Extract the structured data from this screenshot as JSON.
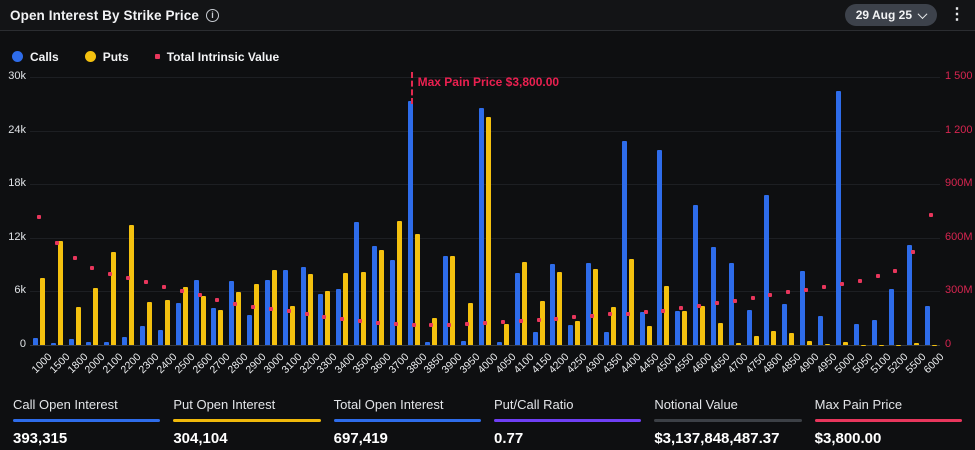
{
  "header": {
    "title": "Open Interest By Strike Price",
    "info_icon": "i",
    "date_selector": "29 Aug 25",
    "menu_icon": "⋮"
  },
  "legend": {
    "calls": "Calls",
    "puts": "Puts",
    "intrinsic": "Total Intrinsic Value"
  },
  "colors": {
    "calls_blue": "#2e6cea",
    "puts_yellow": "#f4c10f",
    "intrinsic_pink": "#e8365c",
    "ratio_purple": "#6f3ff5",
    "notional_gray": "#3c4046"
  },
  "chart_data": {
    "type": "bar",
    "title": "Open Interest By Strike Price",
    "grid": true,
    "legend_position": "top-left",
    "categories": [
      "1000",
      "1500",
      "1800",
      "2000",
      "2100",
      "2200",
      "2300",
      "2400",
      "2500",
      "2600",
      "2700",
      "2800",
      "2900",
      "3000",
      "3100",
      "3200",
      "3300",
      "3400",
      "3500",
      "3600",
      "3700",
      "3800",
      "3850",
      "3900",
      "3950",
      "4000",
      "4050",
      "4100",
      "4150",
      "4200",
      "4250",
      "4300",
      "4350",
      "4400",
      "4450",
      "4500",
      "4550",
      "4600",
      "4650",
      "4700",
      "4750",
      "4800",
      "4850",
      "4900",
      "4950",
      "5000",
      "5050",
      "5100",
      "5200",
      "5500",
      "6000"
    ],
    "series": [
      {
        "name": "Calls",
        "type": "bar",
        "color": "#2e6cea",
        "axis": "left",
        "values": [
          800,
          200,
          700,
          300,
          300,
          900,
          2100,
          1700,
          4700,
          7300,
          4100,
          7200,
          3400,
          7300,
          8400,
          8700,
          5700,
          6300,
          13800,
          11100,
          9500,
          27300,
          300,
          10000,
          500,
          26500,
          300,
          8100,
          1400,
          9100,
          2200,
          9200,
          1400,
          22800,
          3700,
          21800,
          3800,
          15700,
          11000,
          9200,
          3900,
          16800,
          4600,
          8300,
          3300,
          28400,
          2400,
          2800,
          6300,
          11200,
          4400
        ]
      },
      {
        "name": "Puts",
        "type": "bar",
        "color": "#f4c10f",
        "axis": "left",
        "values": [
          7500,
          11600,
          4300,
          6400,
          10400,
          13400,
          4800,
          5000,
          6500,
          5500,
          3900,
          5900,
          6800,
          8400,
          4400,
          8000,
          6100,
          8100,
          8200,
          10600,
          13900,
          12400,
          3000,
          10000,
          4700,
          25500,
          2300,
          9300,
          4900,
          8200,
          2700,
          8500,
          4200,
          9600,
          2100,
          6600,
          3800,
          4400,
          2500,
          200,
          1000,
          1600,
          1300,
          500,
          100,
          300,
          50,
          50,
          50,
          200,
          50
        ]
      },
      {
        "name": "Total Intrinsic Value",
        "type": "scatter",
        "color": "#e8365c",
        "axis": "right",
        "unit": "M",
        "values": [
          719,
          573,
          489,
          433,
          399,
          376,
          354,
          326,
          303,
          281,
          253,
          230,
          213,
          200,
          191,
          174,
          157,
          146,
          135,
          124,
          118,
          112,
          110,
          112,
          115,
          124,
          130,
          135,
          141,
          146,
          157,
          163,
          175,
          172,
          185,
          191,
          208,
          219,
          236,
          247,
          264,
          281,
          298,
          309,
          326,
          343,
          360,
          388,
          416,
          522,
          725
        ]
      }
    ],
    "left_axis": {
      "ticks": [
        "30k",
        "24k",
        "18k",
        "12k",
        "6k",
        "0"
      ],
      "max": 30000,
      "min": 0
    },
    "right_axis": {
      "ticks": [
        "1 500",
        "1 200",
        "900M",
        "600M",
        "300M",
        "0"
      ],
      "max_millions": 1500,
      "min": 0
    },
    "annotation": {
      "label": "Max Pain Price $3,800.00",
      "strike": "3800"
    }
  },
  "stats": {
    "items": [
      {
        "label": "Call Open Interest",
        "value": "393,315",
        "color": "#2e6cea"
      },
      {
        "label": "Put Open Interest",
        "value": "304,104",
        "color": "#f0b90b"
      },
      {
        "label": "Total Open Interest",
        "value": "697,419",
        "color": "#2e6cea"
      },
      {
        "label": "Put/Call Ratio",
        "value": "0.77",
        "color": "#6f3ff5"
      },
      {
        "label": "Notional Value",
        "value": "$3,137,848,487.37",
        "color": "#3c4046"
      },
      {
        "label": "Max Pain Price",
        "value": "$3,800.00",
        "color": "#e8365c"
      }
    ]
  }
}
